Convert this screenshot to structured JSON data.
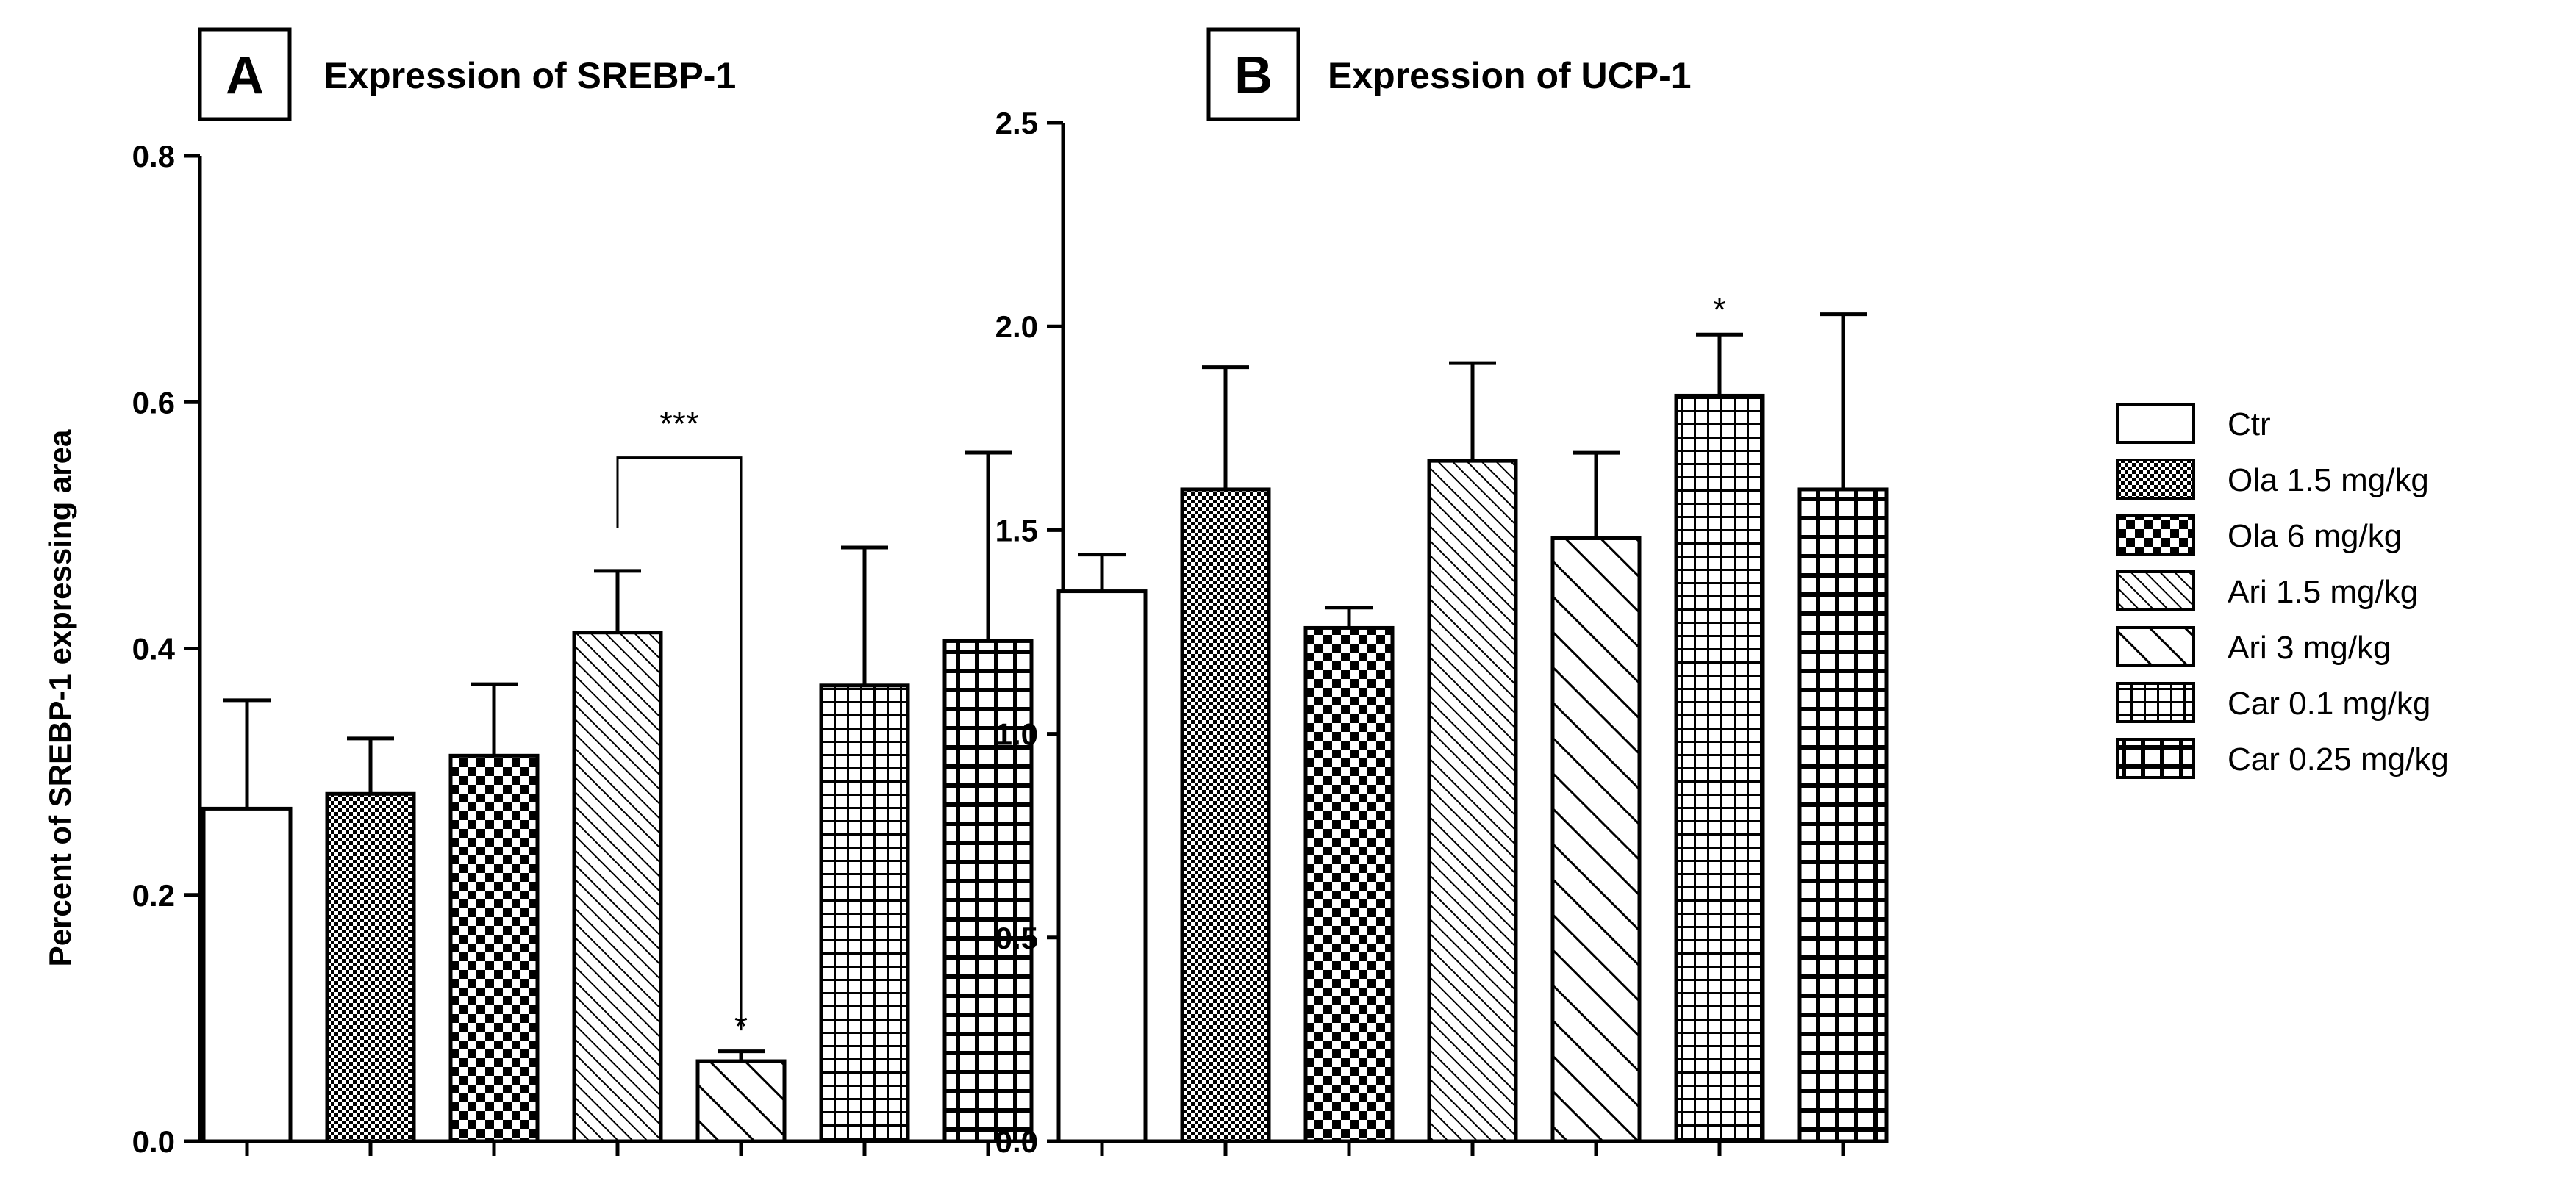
{
  "legend": [
    "Ctr",
    "Ola 1.5 mg/kg",
    "Ola 6 mg/kg",
    "Ari 1.5 mg/kg",
    "Ari 3 mg/kg",
    "Car 0.1 mg/kg",
    "Car 0.25 mg/kg"
  ],
  "chart_data": [
    {
      "type": "bar",
      "panel": "A",
      "title": "Expression of SREBP-1",
      "xlabel": "",
      "ylabel": "Percent of SREBP-1 expressing area",
      "ylim": [
        0,
        0.8
      ],
      "yticks": [
        "0.0",
        "0.2",
        "0.4",
        "0.6",
        "0.8"
      ],
      "categories": [
        "Ctr",
        "Ola 1.5 mg/kg",
        "Ola 6 mg/kg",
        "Ari 1.5 mg/kg",
        "Ari 3 mg/kg",
        "Car 0.1 mg/kg",
        "Car 0.25 mg/kg"
      ],
      "values": [
        0.27,
        0.282,
        0.313,
        0.413,
        0.065,
        0.37,
        0.406
      ],
      "errors": [
        0.088,
        0.045,
        0.058,
        0.05,
        0.008,
        0.112,
        0.153
      ],
      "annotations": [
        {
          "text": "*",
          "category": "Ari 3 mg/kg"
        },
        {
          "text": "***",
          "bracket": [
            "Ari 1.5 mg/kg",
            "Ari 3 mg/kg"
          ]
        }
      ]
    },
    {
      "type": "bar",
      "panel": "B",
      "title": "Expression of UCP-1",
      "xlabel": "",
      "ylabel": "",
      "ylim": [
        0,
        2.5
      ],
      "yticks": [
        "0.0",
        "0.5",
        "1.0",
        "1.5",
        "2.0",
        "2.5"
      ],
      "categories": [
        "Ctr",
        "Ola 1.5 mg/kg",
        "Ola 6 mg/kg",
        "Ari 1.5 mg/kg",
        "Ari 3 mg/kg",
        "Car 0.1 mg/kg",
        "Car 0.25 mg/kg"
      ],
      "values": [
        1.35,
        1.6,
        1.26,
        1.67,
        1.48,
        1.83,
        1.6
      ],
      "errors": [
        0.09,
        0.3,
        0.05,
        0.24,
        0.21,
        0.15,
        0.43
      ],
      "annotations": [
        {
          "text": "*",
          "category": "Car 0.1 mg/kg"
        }
      ]
    }
  ]
}
